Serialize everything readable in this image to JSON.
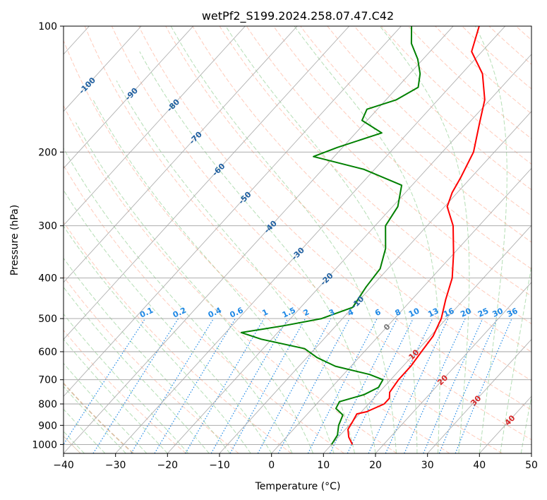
{
  "chart_data": {
    "type": "line",
    "subtype": "skew-T log-p diagram",
    "title": "wetPf2_S199.2024.258.07.47.C42",
    "xlabel": "Temperature (°C)",
    "ylabel": "Pressure (hPa)",
    "xlim": [
      -40,
      50
    ],
    "ylim": [
      1050,
      100
    ],
    "y_scale": "log",
    "grid": true,
    "x_ticks": [
      -40,
      -30,
      -20,
      -10,
      0,
      10,
      20,
      30,
      40,
      50
    ],
    "y_ticks": [
      100,
      200,
      300,
      400,
      500,
      600,
      700,
      800,
      900,
      1000
    ],
    "series": [
      {
        "name": "Temperature",
        "color": "#ff0000",
        "points": [
          {
            "p": 1000,
            "t": 14.0
          },
          {
            "p": 960,
            "t": 12.0
          },
          {
            "p": 920,
            "t": 10.5
          },
          {
            "p": 880,
            "t": 10.0
          },
          {
            "p": 845,
            "t": 9.5
          },
          {
            "p": 835,
            "t": 11.0
          },
          {
            "p": 800,
            "t": 13.0
          },
          {
            "p": 775,
            "t": 13.0
          },
          {
            "p": 750,
            "t": 12.0
          },
          {
            "p": 700,
            "t": 11.5
          },
          {
            "p": 650,
            "t": 11.5
          },
          {
            "p": 600,
            "t": 11.0
          },
          {
            "p": 550,
            "t": 10.5
          },
          {
            "p": 500,
            "t": 9.0
          },
          {
            "p": 450,
            "t": 6.5
          },
          {
            "p": 400,
            "t": 4.0
          },
          {
            "p": 350,
            "t": 0.0
          },
          {
            "p": 300,
            "t": -5.0
          },
          {
            "p": 270,
            "t": -9.5
          },
          {
            "p": 250,
            "t": -11.0
          },
          {
            "p": 230,
            "t": -12.0
          },
          {
            "p": 200,
            "t": -14.0
          },
          {
            "p": 170,
            "t": -18.0
          },
          {
            "p": 150,
            "t": -21.0
          },
          {
            "p": 130,
            "t": -26.0
          },
          {
            "p": 115,
            "t": -32.0
          },
          {
            "p": 100,
            "t": -35.0
          }
        ]
      },
      {
        "name": "Dewpoint",
        "color": "#008000",
        "points": [
          {
            "p": 1000,
            "t": 10.0
          },
          {
            "p": 950,
            "t": 9.5
          },
          {
            "p": 900,
            "t": 8.0
          },
          {
            "p": 850,
            "t": 7.0
          },
          {
            "p": 820,
            "t": 4.5
          },
          {
            "p": 790,
            "t": 4.0
          },
          {
            "p": 760,
            "t": 7.5
          },
          {
            "p": 730,
            "t": 9.0
          },
          {
            "p": 700,
            "t": 8.5
          },
          {
            "p": 680,
            "t": 5.0
          },
          {
            "p": 650,
            "t": -3.0
          },
          {
            "p": 620,
            "t": -8.0
          },
          {
            "p": 590,
            "t": -12.0
          },
          {
            "p": 560,
            "t": -22.0
          },
          {
            "p": 540,
            "t": -27.0
          },
          {
            "p": 520,
            "t": -20.0
          },
          {
            "p": 500,
            "t": -14.0
          },
          {
            "p": 470,
            "t": -10.0
          },
          {
            "p": 420,
            "t": -11.0
          },
          {
            "p": 380,
            "t": -11.5
          },
          {
            "p": 340,
            "t": -14.0
          },
          {
            "p": 300,
            "t": -18.0
          },
          {
            "p": 270,
            "t": -19.0
          },
          {
            "p": 240,
            "t": -22.0
          },
          {
            "p": 220,
            "t": -32.0
          },
          {
            "p": 205,
            "t": -44.0
          },
          {
            "p": 195,
            "t": -41.0
          },
          {
            "p": 180,
            "t": -35.0
          },
          {
            "p": 168,
            "t": -41.0
          },
          {
            "p": 158,
            "t": -42.0
          },
          {
            "p": 150,
            "t": -38.0
          },
          {
            "p": 140,
            "t": -36.0
          },
          {
            "p": 130,
            "t": -38.0
          },
          {
            "p": 120,
            "t": -41.0
          },
          {
            "p": 110,
            "t": -45.0
          },
          {
            "p": 100,
            "t": -48.0
          }
        ]
      }
    ],
    "isotherm_labels": [
      "-100",
      "-90",
      "-80",
      "-70",
      "-60",
      "-50",
      "-40",
      "-30",
      "-20",
      "-10",
      "0",
      "10",
      "20",
      "30",
      "40"
    ],
    "mixing_ratio_labels": [
      "0.1",
      "0.2",
      "0.4",
      "0.6",
      "1",
      "1.5",
      "2",
      "3",
      "4",
      "6",
      "8",
      "10",
      "13",
      "16",
      "20",
      "25",
      "30",
      "36"
    ]
  },
  "colors": {
    "isotherm_label_cold": "#1f5fa0",
    "isotherm_label_zero": "#777777",
    "isotherm_label_warm": "#d62728",
    "mixing_ratio": "#1e88e5",
    "dry_adiabat": "#ff8c69",
    "moist_adiabat": "#2ca02c",
    "grid": "#a0a0a0"
  }
}
